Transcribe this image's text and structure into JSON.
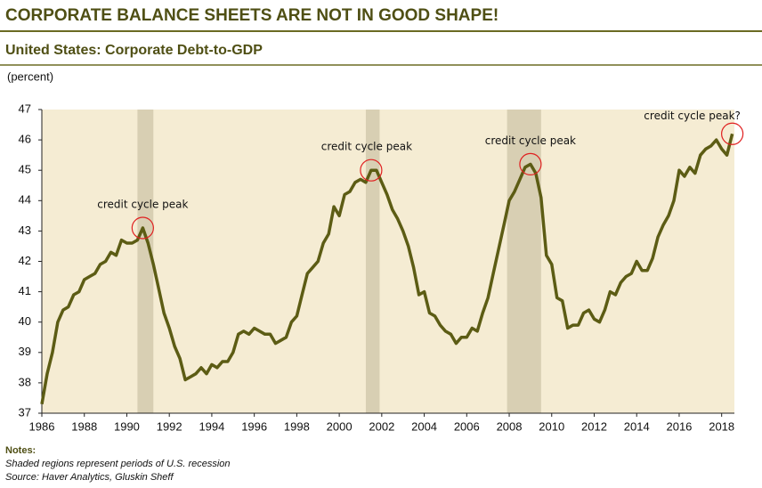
{
  "chart_data": {
    "type": "line",
    "title": "CORPORATE BALANCE SHEETS ARE NOT IN GOOD SHAPE!",
    "subtitle": "United States: Corporate Debt-to-GDP",
    "y_label": "(percent)",
    "color": "#5c5c14",
    "x": [
      1986.0,
      1986.25,
      1986.5,
      1986.75,
      1987.0,
      1987.25,
      1987.5,
      1987.75,
      1988.0,
      1988.25,
      1988.5,
      1988.75,
      1989.0,
      1989.25,
      1989.5,
      1989.75,
      1990.0,
      1990.25,
      1990.5,
      1990.75,
      1991.0,
      1991.25,
      1991.5,
      1991.75,
      1992.0,
      1992.25,
      1992.5,
      1992.75,
      1993.0,
      1993.25,
      1993.5,
      1993.75,
      1994.0,
      1994.25,
      1994.5,
      1994.75,
      1995.0,
      1995.25,
      1995.5,
      1995.75,
      1996.0,
      1996.25,
      1996.5,
      1996.75,
      1997.0,
      1997.25,
      1997.5,
      1997.75,
      1998.0,
      1998.25,
      1998.5,
      1998.75,
      1999.0,
      1999.25,
      1999.5,
      1999.75,
      2000.0,
      2000.25,
      2000.5,
      2000.75,
      2001.0,
      2001.25,
      2001.5,
      2001.75,
      2002.0,
      2002.25,
      2002.5,
      2002.75,
      2003.0,
      2003.25,
      2003.5,
      2003.75,
      2004.0,
      2004.25,
      2004.5,
      2004.75,
      2005.0,
      2005.25,
      2005.5,
      2005.75,
      2006.0,
      2006.25,
      2006.5,
      2006.75,
      2007.0,
      2007.25,
      2007.5,
      2007.75,
      2008.0,
      2008.25,
      2008.5,
      2008.75,
      2009.0,
      2009.25,
      2009.5,
      2009.75,
      2010.0,
      2010.25,
      2010.5,
      2010.75,
      2011.0,
      2011.25,
      2011.5,
      2011.75,
      2012.0,
      2012.25,
      2012.5,
      2012.75,
      2013.0,
      2013.25,
      2013.5,
      2013.75,
      2014.0,
      2014.25,
      2014.5,
      2014.75,
      2015.0,
      2015.25,
      2015.5,
      2015.75,
      2016.0,
      2016.25,
      2016.5,
      2016.75,
      2017.0,
      2017.25,
      2017.5,
      2017.75,
      2018.0,
      2018.25,
      2018.5
    ],
    "values": [
      37.3,
      38.3,
      39.0,
      40.0,
      40.4,
      40.5,
      40.9,
      41.0,
      41.4,
      41.5,
      41.6,
      41.9,
      42.0,
      42.3,
      42.2,
      42.7,
      42.6,
      42.6,
      42.7,
      43.1,
      42.6,
      41.9,
      41.1,
      40.3,
      39.8,
      39.2,
      38.8,
      38.1,
      38.2,
      38.3,
      38.5,
      38.3,
      38.6,
      38.5,
      38.7,
      38.7,
      39.0,
      39.6,
      39.7,
      39.6,
      39.8,
      39.7,
      39.6,
      39.6,
      39.3,
      39.4,
      39.5,
      40.0,
      40.2,
      40.9,
      41.6,
      41.8,
      42.0,
      42.6,
      42.9,
      43.8,
      43.5,
      44.2,
      44.3,
      44.6,
      44.7,
      44.6,
      45.0,
      45.0,
      44.6,
      44.2,
      43.7,
      43.4,
      43.0,
      42.5,
      41.8,
      40.9,
      41.0,
      40.3,
      40.2,
      39.9,
      39.7,
      39.6,
      39.3,
      39.5,
      39.5,
      39.8,
      39.7,
      40.3,
      40.8,
      41.6,
      42.4,
      43.2,
      44.0,
      44.3,
      44.7,
      45.1,
      45.2,
      44.9,
      44.1,
      42.2,
      41.9,
      40.8,
      40.7,
      39.8,
      39.9,
      39.9,
      40.3,
      40.4,
      40.1,
      40.0,
      40.4,
      41.0,
      40.9,
      41.3,
      41.5,
      41.6,
      42.0,
      41.7,
      41.7,
      42.1,
      42.8,
      43.2,
      43.5,
      44.0,
      45.0,
      44.8,
      45.1,
      44.9,
      45.5,
      45.7,
      45.8,
      46.0,
      45.7,
      45.5,
      46.2
    ],
    "recessions": [
      [
        1990.5,
        1991.25
      ],
      [
        2001.25,
        2001.9
      ],
      [
        2007.9,
        2009.5
      ]
    ],
    "annotations": [
      "credit cycle peak",
      "credit cycle peak",
      "credit cycle peak",
      "credit cycle peak?"
    ],
    "xlim": [
      1986,
      2018.6
    ],
    "xticks": [
      1986,
      1988,
      1990,
      1992,
      1994,
      1996,
      1998,
      2000,
      2002,
      2004,
      2006,
      2008,
      2010,
      2012,
      2014,
      2016,
      2018
    ],
    "ylim": [
      37,
      47
    ],
    "yticks": [
      37,
      38,
      39,
      40,
      41,
      42,
      43,
      44,
      45,
      46,
      47
    ],
    "notes": [
      "Notes:",
      "Shaded regions represent periods of U.S. recession",
      "Source: Haver Analytics, Gluskin Sheff"
    ]
  }
}
